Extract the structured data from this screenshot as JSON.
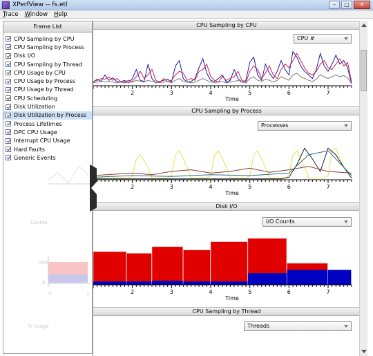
{
  "window": {
    "title": "XPerfView -- fs.etl",
    "controls": [
      "–",
      "□",
      "✕"
    ]
  },
  "menu": [
    {
      "first": "T",
      "rest": "race"
    },
    {
      "first": "W",
      "rest": "indow"
    },
    {
      "first": "H",
      "rest": "elp"
    }
  ],
  "frame_list": {
    "title": "Frame List",
    "items": [
      {
        "label": "CPU Sampling by CPU",
        "checked": true
      },
      {
        "label": "CPU Sampling by Process",
        "checked": true
      },
      {
        "label": "Disk I/O",
        "checked": true
      },
      {
        "label": "CPU Sampling by Thread",
        "checked": true
      },
      {
        "label": "CPU Usage by CPU",
        "checked": true
      },
      {
        "label": "CPU Usage by Process",
        "checked": true
      },
      {
        "label": "CPU Usage by Thread",
        "checked": true
      },
      {
        "label": "CPU Scheduling",
        "checked": true
      },
      {
        "label": "Disk Utilization",
        "checked": true
      },
      {
        "label": "Disk Utilization by Process",
        "checked": true
      },
      {
        "label": "Process Lifetimes",
        "checked": true
      },
      {
        "label": "DPC CPU Usage",
        "checked": true
      },
      {
        "label": "Interrupt CPU Usage",
        "checked": true
      },
      {
        "label": "Hard Faults",
        "checked": true
      },
      {
        "label": "Generic Events",
        "checked": true
      }
    ],
    "selected_index": 9,
    "ghost_labels": {
      "counts": "Counts",
      "tick200": "200",
      "tick0": "0",
      "usage": "% Usage",
      "axis0": "0",
      "axis1": "1"
    }
  },
  "panels": [
    {
      "title": "CPU Sampling by CPU",
      "dropdown": "CPU #",
      "xlabel": "Time",
      "ticks": [
        "2",
        "3",
        "4",
        "5",
        "6",
        "7"
      ],
      "chart_data": {
        "type": "line",
        "xlabel": "Time",
        "xlim": [
          1,
          7.6
        ],
        "series": [
          {
            "color": "#1a1aa8",
            "x": [
              1.0,
              1.1,
              1.2,
              1.3,
              1.4,
              1.5,
              1.6,
              1.7,
              1.8,
              1.9,
              2.0,
              2.1,
              2.2,
              2.3,
              2.4,
              2.5,
              2.6,
              2.7,
              2.8,
              2.9,
              3.0,
              3.1,
              3.2,
              3.3,
              3.4,
              3.5,
              3.6,
              3.7,
              3.8,
              3.9,
              4.0,
              4.1,
              4.2,
              4.3,
              4.4,
              4.5,
              4.6,
              4.7,
              4.8,
              4.9,
              5.0,
              5.1,
              5.2,
              5.3,
              5.4,
              5.5,
              5.6,
              5.7,
              5.8,
              5.9,
              6.0,
              6.1,
              6.2,
              6.3,
              6.4,
              6.5,
              6.6,
              6.7,
              6.8,
              6.9,
              7.0,
              7.1,
              7.2,
              7.3,
              7.4,
              7.5,
              7.6
            ],
            "y": [
              10,
              18,
              12,
              30,
              15,
              22,
              12,
              10,
              15,
              8,
              20,
              45,
              15,
              12,
              60,
              20,
              8,
              12,
              15,
              18,
              10,
              55,
              70,
              20,
              10,
              12,
              20,
              50,
              75,
              35,
              15,
              12,
              20,
              30,
              10,
              15,
              45,
              20,
              10,
              15,
              65,
              80,
              30,
              15,
              60,
              35,
              20,
              40,
              70,
              45,
              30,
              95,
              80,
              55,
              40,
              30,
              20,
              45,
              90,
              55,
              40,
              60,
              85,
              60,
              70,
              50,
              5
            ]
          },
          {
            "color": "#d0204a",
            "x": [
              1.0,
              1.1,
              1.2,
              1.3,
              1.4,
              1.5,
              1.6,
              1.7,
              1.8,
              1.9,
              2.0,
              2.1,
              2.2,
              2.3,
              2.4,
              2.5,
              2.6,
              2.7,
              2.8,
              2.9,
              3.0,
              3.1,
              3.2,
              3.3,
              3.4,
              3.5,
              3.6,
              3.7,
              3.8,
              3.9,
              4.0,
              4.1,
              4.2,
              4.3,
              4.4,
              4.5,
              4.6,
              4.7,
              4.8,
              4.9,
              5.0,
              5.1,
              5.2,
              5.3,
              5.4,
              5.5,
              5.6,
              5.7,
              5.8,
              5.9,
              6.0,
              6.1,
              6.2,
              6.3,
              6.4,
              6.5,
              6.6,
              6.7,
              6.8,
              6.9,
              7.0,
              7.1,
              7.2,
              7.3,
              7.4,
              7.5,
              7.6
            ],
            "y": [
              12,
              15,
              20,
              18,
              25,
              15,
              20,
              12,
              10,
              15,
              12,
              25,
              40,
              20,
              30,
              45,
              15,
              10,
              20,
              12,
              15,
              30,
              40,
              35,
              15,
              20,
              15,
              40,
              45,
              60,
              25,
              15,
              10,
              25,
              15,
              20,
              25,
              40,
              15,
              10,
              40,
              55,
              45,
              20,
              35,
              55,
              30,
              20,
              45,
              60,
              50,
              70,
              90,
              70,
              50,
              35,
              30,
              40,
              60,
              70,
              50,
              45,
              60,
              75,
              55,
              65,
              10
            ]
          },
          {
            "color": "#7a7a7a",
            "x": [
              1.0,
              1.1,
              1.2,
              1.3,
              1.4,
              1.5,
              1.6,
              1.7,
              1.8,
              1.9,
              2.0,
              2.1,
              2.2,
              2.3,
              2.4,
              2.5,
              2.6,
              2.7,
              2.8,
              2.9,
              3.0,
              3.1,
              3.2,
              3.3,
              3.4,
              3.5,
              3.6,
              3.7,
              3.8,
              3.9,
              4.0,
              4.1,
              4.2,
              4.3,
              4.4,
              4.5,
              4.6,
              4.7,
              4.8,
              4.9,
              5.0,
              5.1,
              5.2,
              5.3,
              5.4,
              5.5,
              5.6,
              5.7,
              5.8,
              5.9,
              6.0,
              6.1,
              6.2,
              6.3,
              6.4,
              6.5,
              6.6,
              6.7,
              6.8,
              6.9,
              7.0,
              7.1,
              7.2,
              7.3,
              7.4,
              7.5,
              7.6
            ],
            "y": [
              8,
              10,
              12,
              10,
              12,
              10,
              8,
              10,
              8,
              10,
              10,
              15,
              12,
              10,
              15,
              12,
              10,
              8,
              10,
              12,
              8,
              15,
              20,
              12,
              10,
              8,
              10,
              15,
              20,
              15,
              10,
              8,
              10,
              12,
              8,
              10,
              12,
              15,
              10,
              8,
              20,
              25,
              15,
              12,
              18,
              15,
              10,
              15,
              25,
              20,
              15,
              30,
              35,
              25,
              20,
              15,
              12,
              18,
              30,
              25,
              20,
              25,
              30,
              25,
              28,
              22,
              5
            ]
          }
        ]
      }
    },
    {
      "title": "CPU Sampling by Process",
      "dropdown": "Processes",
      "xlabel": "Time",
      "ticks": [
        "2",
        "3",
        "4",
        "5",
        "6",
        "7"
      ],
      "chart_data": {
        "type": "line",
        "xlabel": "Time",
        "xlim": [
          1,
          7.6
        ],
        "series": [
          {
            "color": "#e3e35a",
            "x": [
              1.0,
              1.4,
              1.6,
              1.9,
              2.0,
              2.1,
              2.2,
              2.4,
              2.5,
              2.9,
              3.0,
              3.1,
              3.2,
              3.4,
              3.5,
              3.9,
              4.0,
              4.1,
              4.2,
              4.4,
              4.5,
              4.9,
              5.0,
              5.1,
              5.2,
              5.4,
              5.5,
              5.9,
              6.0,
              6.1,
              6.2,
              6.4,
              6.5,
              6.9,
              7.0,
              7.1,
              7.2,
              7.4,
              7.6
            ],
            "y": [
              2,
              2,
              2,
              2,
              5,
              25,
              30,
              15,
              2,
              2,
              5,
              30,
              35,
              15,
              2,
              2,
              5,
              30,
              35,
              15,
              2,
              2,
              5,
              30,
              35,
              15,
              2,
              2,
              5,
              30,
              35,
              15,
              2,
              2,
              5,
              35,
              38,
              15,
              2
            ]
          },
          {
            "color": "#1f1f1f",
            "x": [
              1.0,
              5.8,
              6.0,
              6.2,
              6.4,
              6.6,
              6.8,
              7.0,
              7.2,
              7.4,
              7.6
            ],
            "y": [
              1,
              1,
              3,
              18,
              38,
              25,
              10,
              38,
              30,
              15,
              2
            ]
          },
          {
            "color": "#8a3b2a",
            "x": [
              1.0,
              2.0,
              2.5,
              3.0,
              3.5,
              4.0,
              4.5,
              5.0,
              5.5,
              6.0,
              6.5,
              7.0,
              7.6
            ],
            "y": [
              5,
              8,
              6,
              10,
              12,
              8,
              10,
              14,
              9,
              12,
              16,
              10,
              8
            ]
          },
          {
            "color": "#2a6a8a",
            "x": [
              1.0,
              2.0,
              3.0,
              4.0,
              5.0,
              6.0,
              6.5,
              7.0,
              7.6
            ],
            "y": [
              3,
              5,
              4,
              6,
              5,
              8,
              30,
              35,
              5
            ]
          }
        ]
      }
    },
    {
      "title": "Disk I/O",
      "dropdown": "I/O Counts",
      "xlabel": "Time",
      "ticks": [
        "2",
        "3",
        "4",
        "5",
        "6",
        "7"
      ],
      "chart_data": {
        "type": "bar",
        "xlabel": "Time",
        "xlim": [
          1,
          7.6
        ],
        "series": [
          {
            "name": "",
            "color": "#e00000",
            "bins": [
              [
                1.0,
                1.85,
                100
              ],
              [
                1.85,
                2.5,
                95
              ],
              [
                2.5,
                3.3,
                115
              ],
              [
                3.3,
                4.0,
                105
              ],
              [
                4.0,
                4.95,
                130
              ],
              [
                4.95,
                5.95,
                140
              ],
              [
                5.95,
                7.0,
                65
              ],
              [
                7.0,
                7.6,
                0
              ]
            ]
          },
          {
            "name": "",
            "color": "#0000c0",
            "bins": [
              [
                1.0,
                1.85,
                10
              ],
              [
                1.85,
                2.5,
                10
              ],
              [
                2.5,
                3.3,
                12
              ],
              [
                3.3,
                4.0,
                10
              ],
              [
                4.0,
                4.95,
                10
              ],
              [
                4.95,
                5.95,
                35
              ],
              [
                5.95,
                7.0,
                45
              ],
              [
                7.0,
                7.6,
                45
              ]
            ]
          }
        ]
      }
    },
    {
      "title": "CPU Sampling by Thread",
      "dropdown": "Threads"
    }
  ]
}
